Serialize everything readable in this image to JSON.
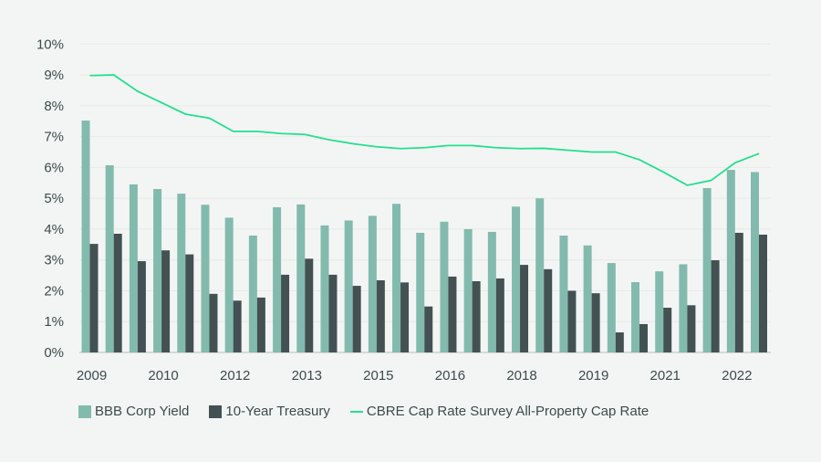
{
  "chart_data": {
    "type": "bar",
    "title": "",
    "xlabel": "",
    "ylabel": "",
    "ylim": [
      0,
      10
    ],
    "y_ticks": [
      "0%",
      "1%",
      "2%",
      "3%",
      "4%",
      "5%",
      "6%",
      "7%",
      "8%",
      "9%",
      "10%"
    ],
    "x_tick_labels": [
      "2009",
      "2010",
      "2012",
      "2013",
      "2015",
      "2016",
      "2018",
      "2019",
      "2021",
      "2022"
    ],
    "x_tick_every": 3,
    "grid": true,
    "legend_position": "bottom",
    "series": [
      {
        "name": "BBB Corp Yield",
        "type": "bar",
        "color": "#82bbad",
        "values": [
          7.52,
          6.07,
          5.45,
          5.3,
          5.15,
          4.79,
          4.37,
          3.79,
          4.71,
          4.8,
          4.12,
          4.28,
          4.43,
          4.82,
          3.88,
          4.24,
          4.0,
          3.91,
          4.73,
          5.0,
          3.79,
          3.47,
          2.9,
          2.28,
          2.63,
          2.86,
          5.33,
          5.92,
          5.85
        ]
      },
      {
        "name": "10-Year Treasury",
        "type": "bar",
        "color": "#435153",
        "values": [
          3.52,
          3.85,
          2.96,
          3.31,
          3.18,
          1.9,
          1.68,
          1.78,
          2.52,
          3.04,
          2.52,
          2.16,
          2.34,
          2.27,
          1.49,
          2.46,
          2.31,
          2.4,
          2.84,
          2.7,
          2.0,
          1.92,
          0.65,
          0.92,
          1.45,
          1.53,
          2.99,
          3.88,
          3.82
        ]
      },
      {
        "name": "CBRE Cap Rate Survey All-Property Cap Rate",
        "type": "line",
        "color": "#22e08e",
        "values": [
          8.98,
          9.0,
          8.47,
          8.1,
          7.73,
          7.6,
          7.17,
          7.17,
          7.1,
          7.07,
          6.9,
          6.77,
          6.67,
          6.61,
          6.64,
          6.71,
          6.71,
          6.64,
          6.61,
          6.62,
          6.56,
          6.5,
          6.5,
          6.25,
          5.85,
          5.42,
          5.58,
          6.15,
          6.45
        ]
      }
    ]
  }
}
